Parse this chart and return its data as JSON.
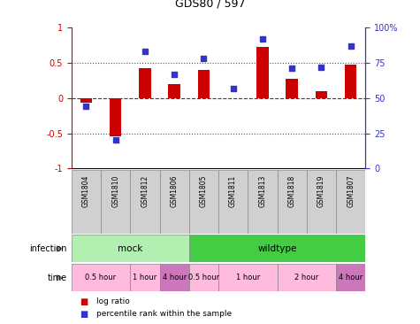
{
  "title": "GDS80 / 597",
  "samples": [
    "GSM1804",
    "GSM1810",
    "GSM1812",
    "GSM1806",
    "GSM1805",
    "GSM1811",
    "GSM1813",
    "GSM1818",
    "GSM1819",
    "GSM1807"
  ],
  "log_ratio": [
    -0.07,
    -0.55,
    0.42,
    0.2,
    0.4,
    0.0,
    0.72,
    0.27,
    0.1,
    0.47
  ],
  "percentile": [
    44,
    20,
    83,
    67,
    78,
    57,
    92,
    71,
    72,
    87
  ],
  "bar_color": "#cc0000",
  "dot_color": "#3333cc",
  "ylim_left": [
    -1,
    1
  ],
  "ylim_right": [
    0,
    100
  ],
  "yticks_left": [
    -1,
    -0.5,
    0,
    0.5,
    1
  ],
  "ytick_labels_left": [
    "-1",
    "-0.5",
    "0",
    "0.5",
    "1"
  ],
  "yticks_right": [
    0,
    25,
    50,
    75,
    100
  ],
  "yticklabels_right": [
    "0",
    "25",
    "50",
    "75",
    "100%"
  ],
  "dotted_lines": [
    -0.5,
    0.5
  ],
  "zero_line": 0.0,
  "infection_groups": [
    {
      "label": "mock",
      "start": 0,
      "end": 4,
      "color": "#b2f0b2"
    },
    {
      "label": "wildtype",
      "start": 4,
      "end": 10,
      "color": "#44cc44"
    }
  ],
  "time_groups": [
    {
      "label": "0.5 hour",
      "start": 0,
      "end": 2,
      "color": "#ffbbdd"
    },
    {
      "label": "1 hour",
      "start": 2,
      "end": 3,
      "color": "#ffbbdd"
    },
    {
      "label": "4 hour",
      "start": 3,
      "end": 4,
      "color": "#cc77bb"
    },
    {
      "label": "0.5 hour",
      "start": 4,
      "end": 5,
      "color": "#ffbbdd"
    },
    {
      "label": "1 hour",
      "start": 5,
      "end": 7,
      "color": "#ffbbdd"
    },
    {
      "label": "2 hour",
      "start": 7,
      "end": 9,
      "color": "#ffbbdd"
    },
    {
      "label": "4 hour",
      "start": 9,
      "end": 10,
      "color": "#cc77bb"
    }
  ],
  "bg_color": "#ffffff"
}
